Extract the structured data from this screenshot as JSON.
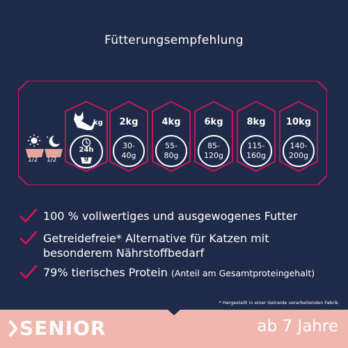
{
  "title": "Fütterungsempfehlung",
  "table": {
    "weight_unit": "kg",
    "per_day": "24h",
    "portion_unit": "g",
    "split_left": "1/2",
    "split_right": "1/2",
    "columns": [
      {
        "weight": "2kg",
        "grams_line1": "30-",
        "grams_line2": "40g"
      },
      {
        "weight": "4kg",
        "grams_line1": "55-",
        "grams_line2": "80g"
      },
      {
        "weight": "6kg",
        "grams_line1": "85-",
        "grams_line2": "120g"
      },
      {
        "weight": "8kg",
        "grams_line1": "115-",
        "grams_line2": "160g"
      },
      {
        "weight": "10kg",
        "grams_line1": "140-",
        "grams_line2": "200g"
      }
    ]
  },
  "benefits": [
    {
      "text": "100 % vollwertiges und ausgewogenes Futter",
      "note": ""
    },
    {
      "text": "Getreidefreie* Alternative für Katzen mit",
      "text2": "besonderem Nährstoffbedarf",
      "note": ""
    },
    {
      "text": "79% tierisches Protein ",
      "note": "(Anteil am Gesamtproteingehalt)"
    }
  ],
  "footnote": "* Hergestellt in einer Getreide verarbeitenden Fabrik.",
  "banner": {
    "label": "SENIOR",
    "age": "ab 7 Jahre"
  },
  "colors": {
    "background": "#1e2a48",
    "accent": "#c2185b",
    "banner": "#f0b7ae",
    "bowl": "#e8a39a"
  },
  "icons": [
    "sun-icon",
    "moon-icon",
    "bowl-icon",
    "cat-icon",
    "clock-icon",
    "scale-icon",
    "check-icon"
  ]
}
